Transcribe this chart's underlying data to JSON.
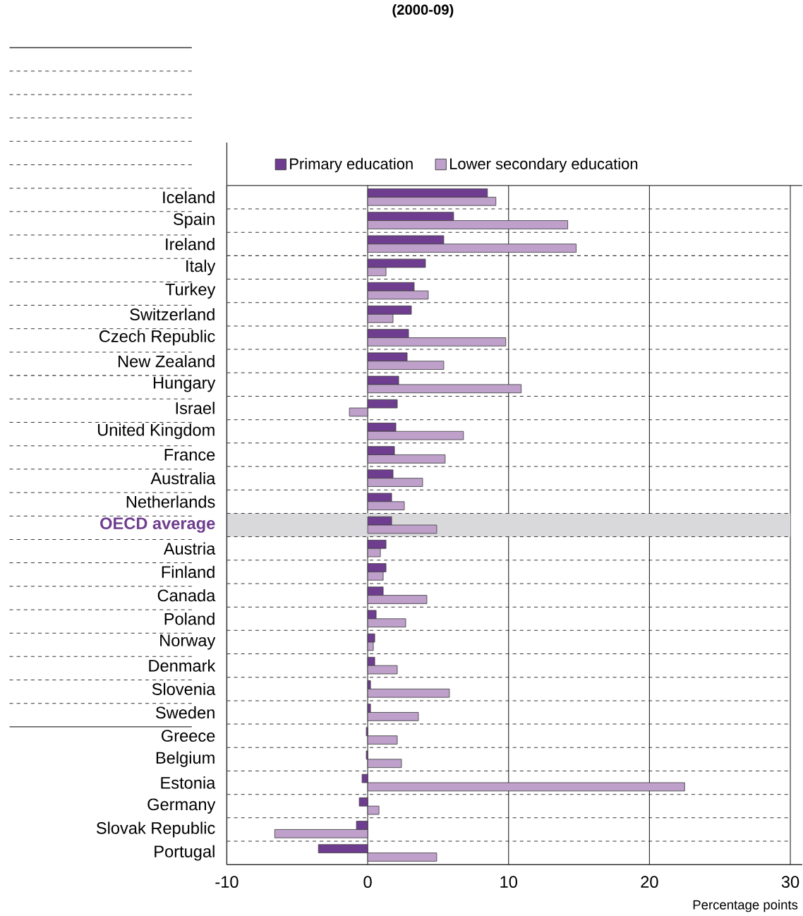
{
  "chart_data": {
    "type": "bar",
    "orientation": "horizontal",
    "title": "(2000-09)",
    "xlabel": "Percentage points",
    "categories": [
      "Iceland",
      "Spain",
      "Ireland",
      "Italy",
      "Turkey",
      "Switzerland",
      "Czech Republic",
      "New Zealand",
      "Hungary",
      "Israel",
      "United Kingdom",
      "France",
      "Australia",
      "Netherlands",
      "OECD average",
      "Austria",
      "Finland",
      "Canada",
      "Poland",
      "Norway",
      "Denmark",
      "Slovenia",
      "Sweden",
      "Greece",
      "Belgium",
      "Estonia",
      "Germany",
      "Slovak Republic",
      "Portugal"
    ],
    "series": [
      {
        "name": "Primary education",
        "color": "#6f3d8f",
        "values": [
          8.5,
          6.1,
          5.4,
          4.1,
          3.3,
          3.1,
          2.9,
          2.8,
          2.2,
          2.1,
          2.0,
          1.9,
          1.8,
          1.7,
          1.7,
          1.3,
          1.3,
          1.1,
          0.6,
          0.5,
          0.5,
          0.2,
          0.2,
          -0.1,
          -0.1,
          -0.4,
          -0.6,
          -0.8,
          -3.5
        ]
      },
      {
        "name": "Lower secondary education",
        "color": "#bea0cb",
        "values": [
          9.1,
          14.2,
          14.8,
          1.3,
          4.3,
          1.8,
          9.8,
          5.4,
          10.9,
          -1.3,
          6.8,
          5.5,
          3.9,
          2.6,
          4.9,
          0.9,
          1.1,
          4.2,
          2.7,
          0.4,
          2.1,
          5.8,
          3.6,
          2.1,
          2.4,
          22.5,
          0.8,
          -6.6,
          4.9
        ]
      }
    ],
    "xlim": [
      -10,
      30
    ],
    "xticks": [
      -10,
      0,
      10,
      20,
      30
    ],
    "grid": "x",
    "legend": "top",
    "bands": [
      {
        "axis": "y",
        "from": "OECD average",
        "to": "OECD average",
        "color": "#d9d9db"
      }
    ]
  }
}
